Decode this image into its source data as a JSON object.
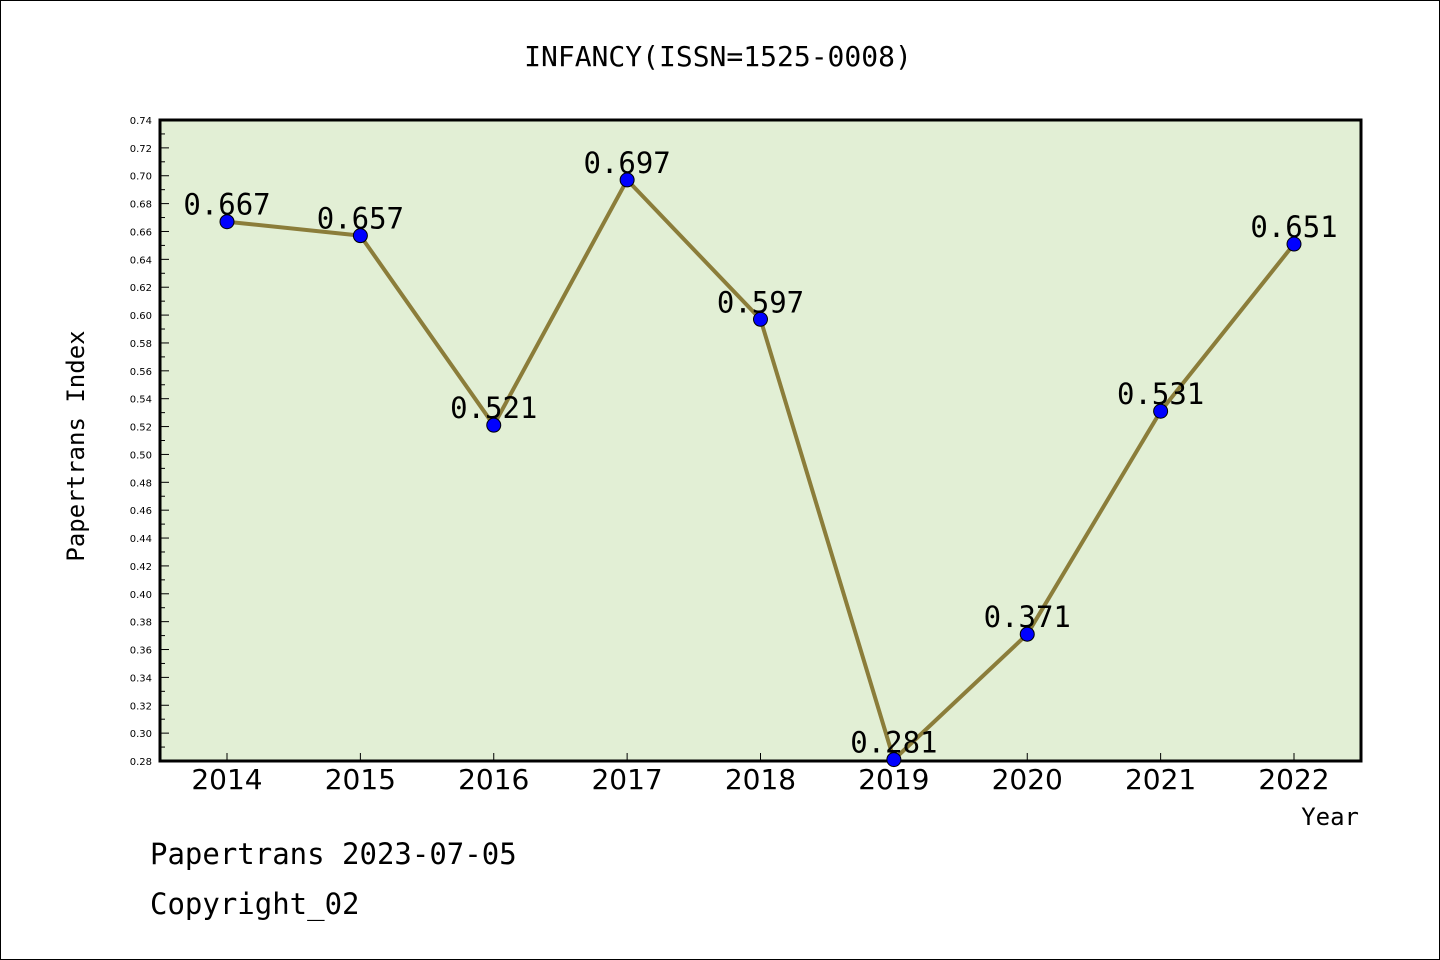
{
  "chart_data": {
    "type": "line",
    "title": "INFANCY(ISSN=1525-0008)",
    "xlabel": "Year",
    "ylabel": "Papertrans Index",
    "categories": [
      "2014",
      "2015",
      "2016",
      "2017",
      "2018",
      "2019",
      "2020",
      "2021",
      "2022"
    ],
    "values": [
      0.667,
      0.657,
      0.521,
      0.697,
      0.597,
      0.281,
      0.371,
      0.531,
      0.651
    ],
    "data_labels": [
      "0.667",
      "0.657",
      "0.521",
      "0.697",
      "0.597",
      "0.281",
      "0.371",
      "0.531",
      "0.651"
    ],
    "ylim": [
      0.28,
      0.74
    ],
    "yticks": [
      "0.28",
      "0.30",
      "0.32",
      "0.34",
      "0.36",
      "0.38",
      "0.40",
      "0.42",
      "0.44",
      "0.46",
      "0.48",
      "0.50",
      "0.52",
      "0.54",
      "0.56",
      "0.58",
      "0.60",
      "0.62",
      "0.64",
      "0.66",
      "0.68",
      "0.70",
      "0.72",
      "0.74"
    ],
    "grid": false,
    "colors": {
      "plot_bg": "#e2efd5",
      "line": "#8b7d3a",
      "marker": "#0000ff"
    }
  },
  "footer": {
    "line1": "Papertrans 2023-07-05",
    "line2": "Copyright_02"
  }
}
